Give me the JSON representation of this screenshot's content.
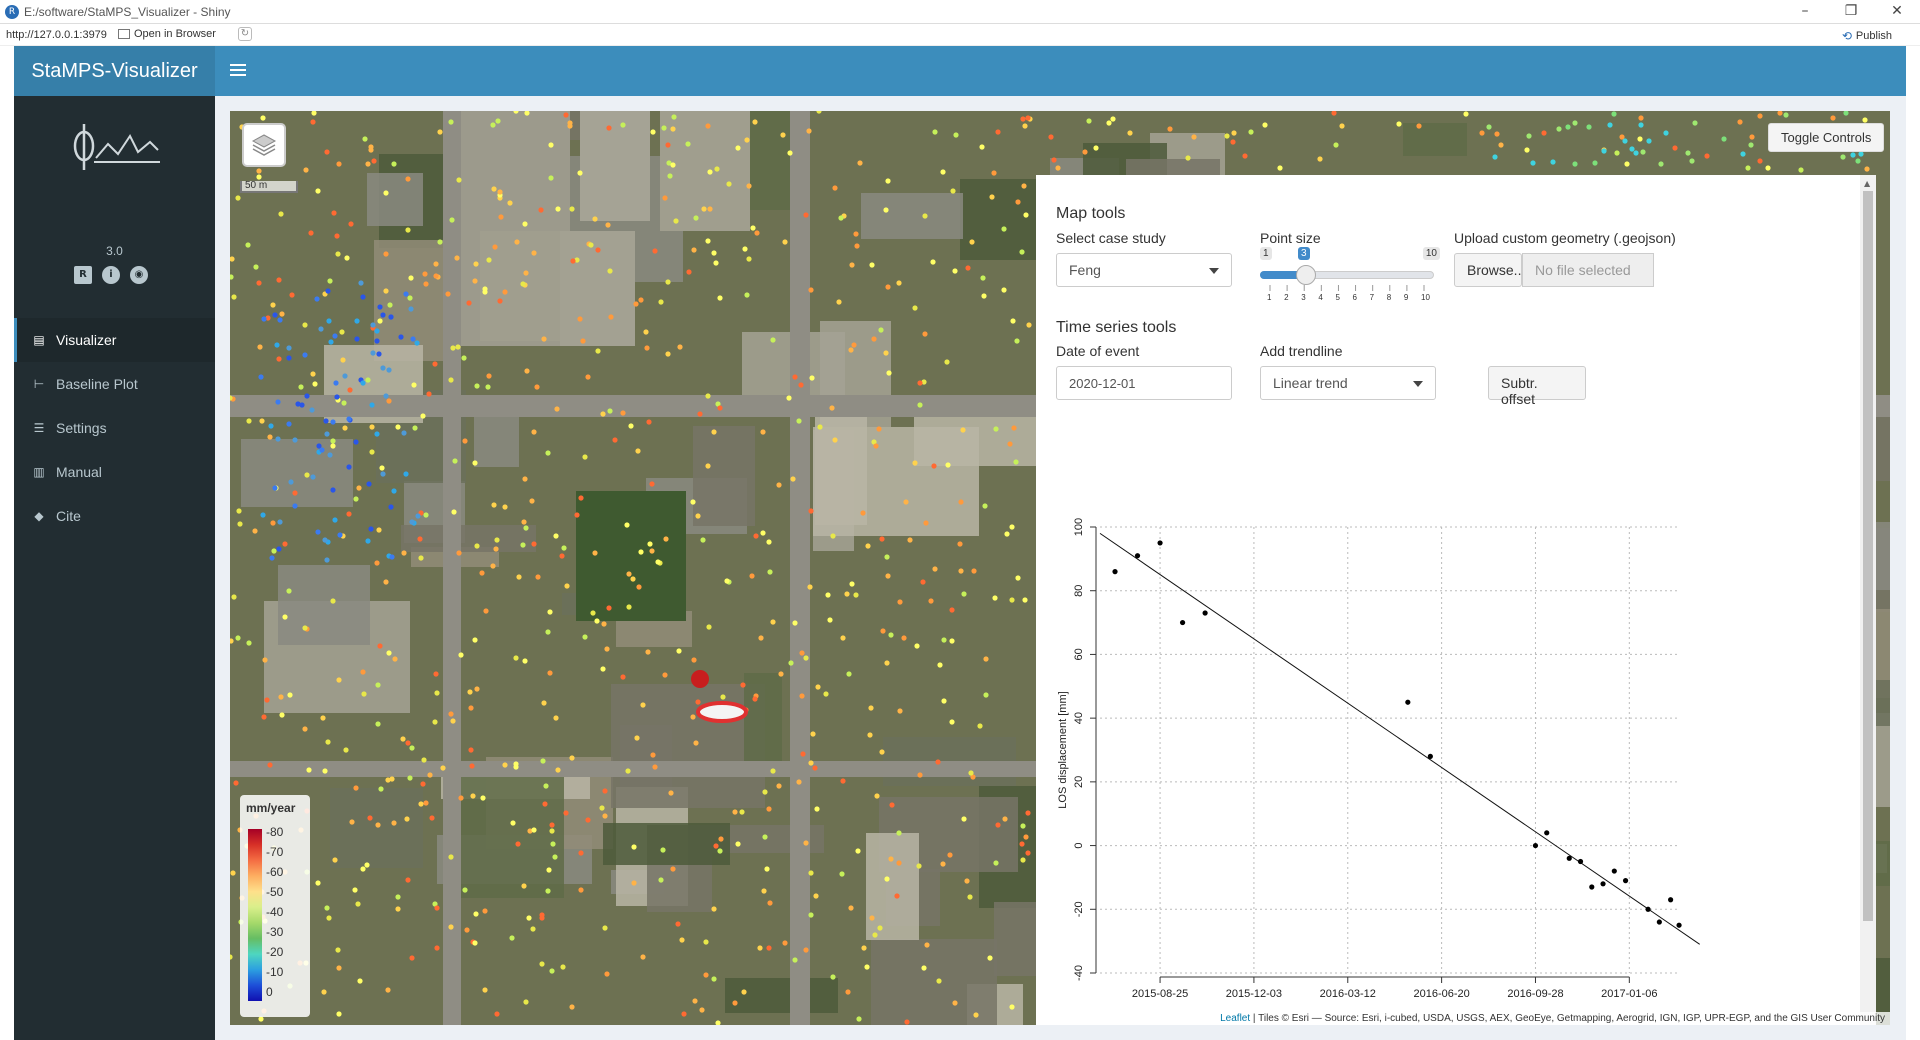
{
  "window": {
    "title": "E:/software/StaMPS_Visualizer - Shiny",
    "url": "http://127.0.0.1:3979",
    "open_in_browser": "Open in Browser",
    "publish": "Publish"
  },
  "header": {
    "app_title": "StaMPS-Visualizer"
  },
  "sidebar": {
    "version": "3.0",
    "items": [
      {
        "label": "Visualizer",
        "icon": "map-icon"
      },
      {
        "label": "Baseline Plot",
        "icon": "sitemap-icon"
      },
      {
        "label": "Settings",
        "icon": "sliders-icon"
      },
      {
        "label": "Manual",
        "icon": "book-icon"
      },
      {
        "label": "Cite",
        "icon": "graduation-cap-icon"
      }
    ]
  },
  "map": {
    "scale_label": "50 m",
    "toggle_controls": "Toggle Controls",
    "legend": {
      "title": "mm/year",
      "labels": [
        "-80",
        "-70",
        "-60",
        "-50",
        "-40",
        "-30",
        "-20",
        "-10",
        "0"
      ]
    },
    "attribution_link": "Leaflet",
    "attribution_text": " | Tiles © Esri — Source: Esri, i-cubed, USDA, USGS, AEX, GeoEye, Getmapping, Aerogrid, IGN, IGP, UPR-EGP, and the GIS User Community"
  },
  "map_tools": {
    "title": "Map tools",
    "case_study": {
      "label": "Select case study",
      "value": "Feng"
    },
    "point_size": {
      "label": "Point size",
      "min": "1",
      "max": "10",
      "value": "3",
      "ticks": [
        "1",
        "2",
        "3",
        "4",
        "5",
        "6",
        "7",
        "8",
        "9",
        "10"
      ]
    },
    "upload": {
      "label": "Upload custom geometry (.geojson)",
      "button": "Browse...",
      "placeholder": "No file selected"
    }
  },
  "ts_tools": {
    "title": "Time series tools",
    "date_event": {
      "label": "Date of event",
      "value": "2020-12-01"
    },
    "trendline": {
      "label": "Add trendline",
      "value": "Linear trend"
    },
    "offset_button": "Subtr. offset"
  },
  "chart_data": {
    "type": "scatter",
    "ylabel": "LOS displacement [mm]",
    "xlabel": "",
    "ylim": [
      -40,
      100
    ],
    "yticks": [
      100,
      80,
      60,
      40,
      20,
      0,
      -20,
      -40
    ],
    "xticks": [
      "2015-08-25",
      "2015-12-03",
      "2016-03-12",
      "2016-06-20",
      "2016-09-28",
      "2017-01-06"
    ],
    "xlim": [
      "2015-06-22",
      "2017-03-01"
    ],
    "grid": true,
    "points": [
      {
        "x": "2015-07-08",
        "y": 86
      },
      {
        "x": "2015-08-01",
        "y": 91
      },
      {
        "x": "2015-08-25",
        "y": 95
      },
      {
        "x": "2015-09-18",
        "y": 70
      },
      {
        "x": "2015-10-12",
        "y": 73
      },
      {
        "x": "2016-05-15",
        "y": 45
      },
      {
        "x": "2016-06-08",
        "y": 28
      },
      {
        "x": "2016-09-28",
        "y": 0
      },
      {
        "x": "2016-10-10",
        "y": 4
      },
      {
        "x": "2016-11-03",
        "y": -4
      },
      {
        "x": "2016-11-15",
        "y": -5
      },
      {
        "x": "2016-11-27",
        "y": -13
      },
      {
        "x": "2016-12-09",
        "y": -12
      },
      {
        "x": "2016-12-21",
        "y": -8
      },
      {
        "x": "2017-01-02",
        "y": -11
      },
      {
        "x": "2017-01-26",
        "y": -20
      },
      {
        "x": "2017-02-07",
        "y": -24
      },
      {
        "x": "2017-02-19",
        "y": -17
      },
      {
        "x": "2017-02-28",
        "y": -25
      }
    ],
    "trend": {
      "type": "linear",
      "start": {
        "x": "2015-06-22",
        "y": 98
      },
      "end": {
        "x": "2017-03-22",
        "y": -31
      }
    }
  },
  "colors": {
    "header": "#3c8dbc",
    "logo_bg": "#367fa9",
    "sidebar": "#222d32",
    "sidebar_active": "#1e282c",
    "accent": "#428bca"
  }
}
